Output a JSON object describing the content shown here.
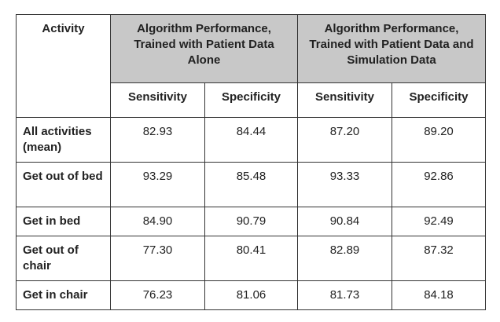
{
  "table": {
    "activity_header": "Activity",
    "groups": [
      "Algorithm Performance, Trained with Patient Data Alone",
      "Algorithm Performance, Trained with Patient Data and Simulation Data"
    ],
    "subheaders": [
      "Sensitivity",
      "Specificity",
      "Sensitivity",
      "Specificity"
    ],
    "rows": [
      [
        "All activities (mean)",
        "82.93",
        "84.44",
        "87.20",
        "89.20"
      ],
      [
        "Get out of bed",
        "93.29",
        "85.48",
        "93.33",
        "92.86"
      ],
      [
        "Get in bed",
        "84.90",
        "90.79",
        "90.84",
        "92.49"
      ],
      [
        "Get out of chair",
        "77.30",
        "80.41",
        "82.89",
        "87.32"
      ],
      [
        "Get in chair",
        "76.23",
        "81.06",
        "81.73",
        "84.18"
      ]
    ]
  }
}
